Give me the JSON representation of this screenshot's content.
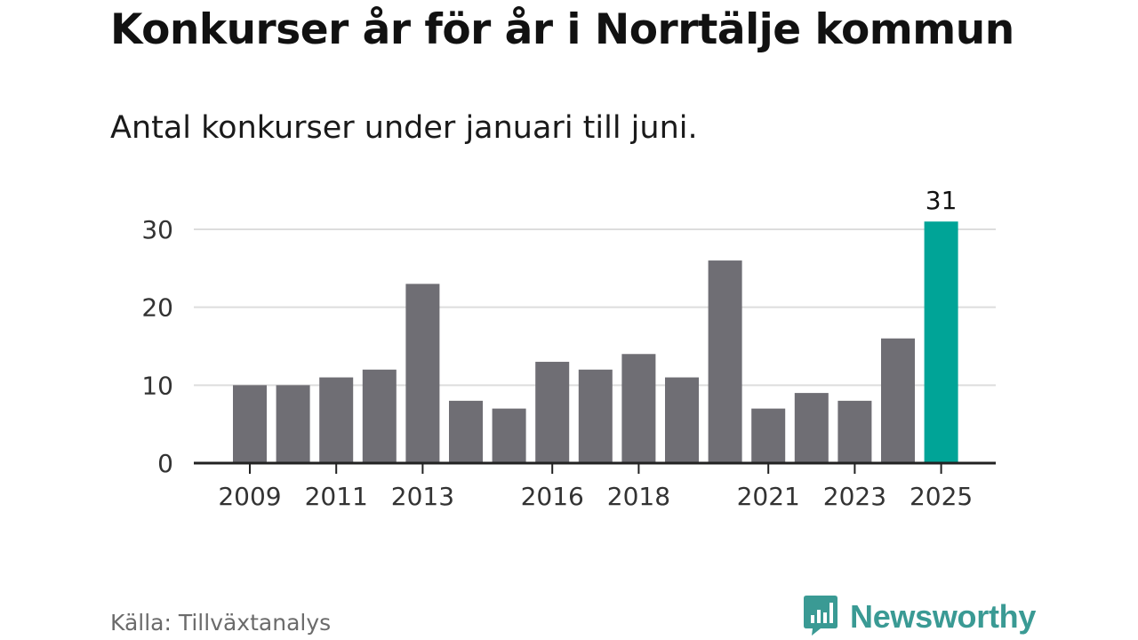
{
  "header": {
    "title": "Konkurser år för år i Norrtälje kommun",
    "subtitle": "Antal konkurser under januari till juni."
  },
  "footer": {
    "source": "Källa: Tillväxtanalys",
    "brand": "Newsworthy",
    "brand_icon": "newsworthy-logo-icon"
  },
  "colors": {
    "bar": "#6f6e74",
    "highlight": "#00a497",
    "grid": "#dddddd",
    "axis": "#222222",
    "brand": "#3a9a94"
  },
  "chart_data": {
    "type": "bar",
    "title": "Konkurser år för år i Norrtälje kommun",
    "subtitle": "Antal konkurser under januari till juni.",
    "xlabel": "",
    "ylabel": "",
    "categories": [
      "2009",
      "2010",
      "2011",
      "2012",
      "2013",
      "2014",
      "2015",
      "2016",
      "2017",
      "2018",
      "2019",
      "2020",
      "2021",
      "2022",
      "2023",
      "2024",
      "2025"
    ],
    "values": [
      10,
      10,
      11,
      12,
      23,
      8,
      7,
      13,
      12,
      14,
      11,
      26,
      7,
      9,
      8,
      16,
      31
    ],
    "x_tick_labels": [
      "2009",
      "2011",
      "2013",
      "2016",
      "2018",
      "2021",
      "2023",
      "2025"
    ],
    "y_ticks": [
      0,
      10,
      20,
      30
    ],
    "ylim": [
      0,
      30
    ],
    "grid": true,
    "highlight_category": "2025",
    "data_labels": [
      {
        "category": "2025",
        "text": "31"
      }
    ],
    "legend": "none"
  }
}
